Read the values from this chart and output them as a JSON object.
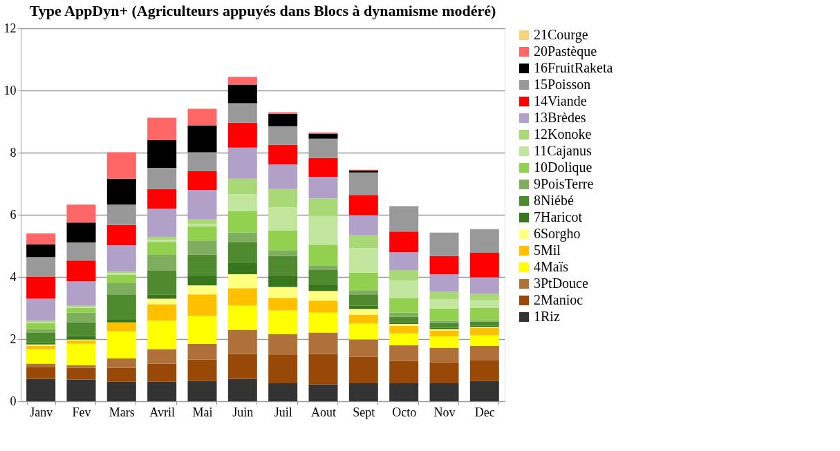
{
  "chart_data": {
    "type": "bar",
    "title": "Type AppDyn+ (Agriculteurs appuyés dans Blocs à dynamisme modéré)",
    "stacked": true,
    "legend": "right",
    "grid": "y",
    "ylim": [
      0,
      12
    ],
    "yticks": [
      0,
      2,
      4,
      6,
      8,
      10,
      12
    ],
    "categories": [
      "Janv",
      "Fev",
      "Mars",
      "Avril",
      "Mai",
      "Juin",
      "Juil",
      "Aout",
      "Sept",
      "Octo",
      "Nov",
      "Dec"
    ],
    "series": [
      {
        "name": "1Riz",
        "color": "#333333",
        "values": [
          0.72,
          0.7,
          0.63,
          0.63,
          0.65,
          0.72,
          0.58,
          0.54,
          0.58,
          0.58,
          0.58,
          0.65
        ]
      },
      {
        "name": "2Manioc",
        "color": "#984807",
        "values": [
          0.37,
          0.37,
          0.44,
          0.58,
          0.69,
          0.8,
          0.91,
          0.98,
          0.85,
          0.72,
          0.67,
          0.68
        ]
      },
      {
        "name": "3PtDouce",
        "color": "#b0703a",
        "values": [
          0.12,
          0.09,
          0.31,
          0.47,
          0.51,
          0.78,
          0.67,
          0.69,
          0.56,
          0.5,
          0.47,
          0.45
        ]
      },
      {
        "name": "4Maïs",
        "color": "#ffff00",
        "values": [
          0.47,
          0.69,
          0.87,
          0.91,
          0.9,
          0.78,
          0.76,
          0.64,
          0.51,
          0.39,
          0.37,
          0.34
        ]
      },
      {
        "name": "5Mil",
        "color": "#ffc000",
        "values": [
          0.1,
          0.11,
          0.29,
          0.53,
          0.69,
          0.56,
          0.41,
          0.39,
          0.29,
          0.24,
          0.19,
          0.24
        ]
      },
      {
        "name": "6Sorgho",
        "color": "#ffff80",
        "values": [
          0.05,
          0.03,
          0,
          0.18,
          0.29,
          0.45,
          0.35,
          0.31,
          0.18,
          0.06,
          0.04,
          0.03
        ]
      },
      {
        "name": "7Haricot",
        "color": "#38761d",
        "values": [
          0.05,
          0.11,
          0.08,
          0.14,
          0.33,
          0.38,
          0.38,
          0.22,
          0.11,
          0.05,
          0.04,
          0.05
        ]
      },
      {
        "name": "8Niébé",
        "color": "#4f8a2e",
        "values": [
          0.32,
          0.44,
          0.82,
          0.76,
          0.66,
          0.64,
          0.61,
          0.45,
          0.36,
          0.18,
          0.16,
          0.12
        ]
      },
      {
        "name": "9PoisTerre",
        "color": "#7fae5f",
        "values": [
          0.13,
          0.31,
          0.36,
          0.51,
          0.45,
          0.32,
          0.19,
          0.15,
          0.13,
          0.13,
          0.07,
          0.05
        ]
      },
      {
        "name": "10Dolique",
        "color": "#92d050",
        "values": [
          0.18,
          0.16,
          0.27,
          0.42,
          0.46,
          0.68,
          0.63,
          0.67,
          0.57,
          0.46,
          0.4,
          0.4
        ]
      },
      {
        "name": "11Cajanus",
        "color": "#c3e69e",
        "values": [
          0.04,
          0.03,
          0.05,
          0.06,
          0.08,
          0.55,
          0.75,
          0.92,
          0.79,
          0.57,
          0.29,
          0.23
        ]
      },
      {
        "name": "12Konoke",
        "color": "#a9d876",
        "values": [
          0.04,
          0.03,
          0.05,
          0.1,
          0.14,
          0.5,
          0.59,
          0.57,
          0.41,
          0.34,
          0.25,
          0.22
        ]
      },
      {
        "name": "13Brèdes",
        "color": "#b1a0c7",
        "values": [
          0.71,
          0.79,
          0.85,
          0.91,
          0.95,
          1.0,
          0.79,
          0.69,
          0.65,
          0.58,
          0.56,
          0.53
        ]
      },
      {
        "name": "14Viande",
        "color": "#ff0000",
        "values": [
          0.71,
          0.67,
          0.65,
          0.63,
          0.6,
          0.8,
          0.63,
          0.61,
          0.65,
          0.66,
          0.58,
          0.79
        ]
      },
      {
        "name": "15Poisson",
        "color": "#999999",
        "values": [
          0.63,
          0.58,
          0.66,
          0.68,
          0.61,
          0.63,
          0.6,
          0.62,
          0.72,
          0.82,
          0.76,
          0.76
        ]
      },
      {
        "name": "16FruitRaketa",
        "color": "#000000",
        "values": [
          0.41,
          0.64,
          0.83,
          0.89,
          0.87,
          0.6,
          0.4,
          0.16,
          0.06,
          0,
          0,
          0
        ]
      },
      {
        "name": "20Pastèque",
        "color": "#ff6666",
        "values": [
          0.35,
          0.58,
          0.85,
          0.72,
          0.53,
          0.25,
          0.05,
          0.04,
          0.03,
          0,
          0,
          0
        ]
      },
      {
        "name": "21Courge",
        "color": "#f2d77a",
        "values": [
          0,
          0,
          0,
          0,
          0,
          0,
          0,
          0,
          0,
          0,
          0,
          0
        ]
      }
    ]
  }
}
